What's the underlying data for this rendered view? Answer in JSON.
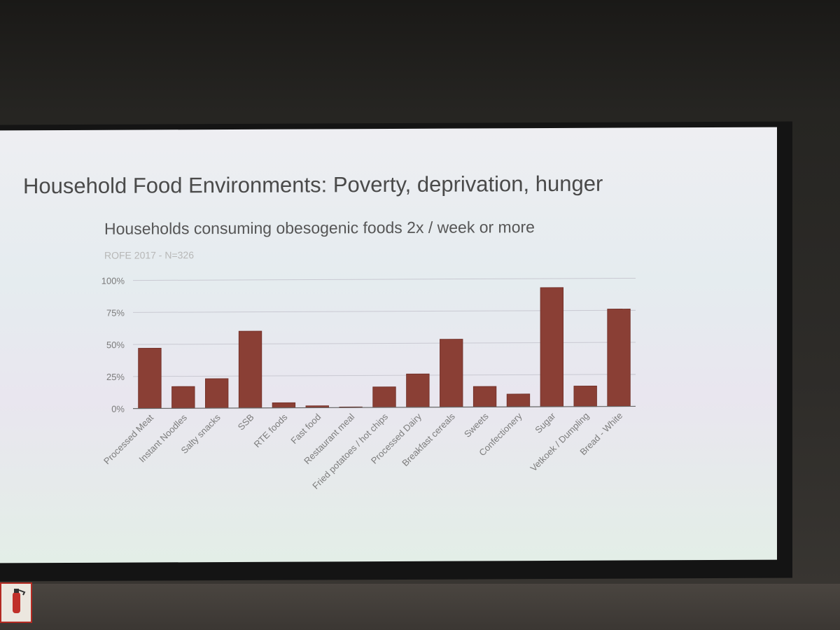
{
  "slide": {
    "title": "Household Food Environments: Poverty, deprivation, hunger"
  },
  "colors": {
    "bar": "#8a3f35",
    "bar_edge": "#6f2e27",
    "gridline": "#c9c9d2",
    "axis": "#666666",
    "tick_text": "#7c7c7c",
    "subtitle_text": "#b7b7b7",
    "chart_title_text": "#565656"
  },
  "icons": {
    "sign": "fire-extinguisher-icon"
  },
  "chart_data": {
    "type": "bar",
    "title": "Households consuming obesogenic foods 2x / week or more",
    "subtitle": "ROFE 2017 - N=326",
    "xlabel": "",
    "ylabel": "",
    "ylim": [
      0,
      100
    ],
    "y_ticks": [
      "0%",
      "25%",
      "50%",
      "75%",
      "100%"
    ],
    "y_tick_values": [
      0,
      25,
      50,
      75,
      100
    ],
    "grid": true,
    "legend": "none",
    "categories": [
      "Processed Meat",
      "Instant Noodles",
      "Salty snacks",
      "SSB",
      "RTE foods",
      "Fast food",
      "Restaurant meal",
      "Fried potatoes / hot chips",
      "Processed Dairy",
      "Breakfast cereals",
      "Sweets",
      "Confectionery",
      "Sugar",
      "Vetkoek / Dumpling",
      "Bread - White"
    ],
    "values": [
      47,
      17,
      23,
      60,
      4,
      1.5,
      0.5,
      16,
      26,
      53,
      16,
      10,
      93,
      16,
      76
    ]
  }
}
